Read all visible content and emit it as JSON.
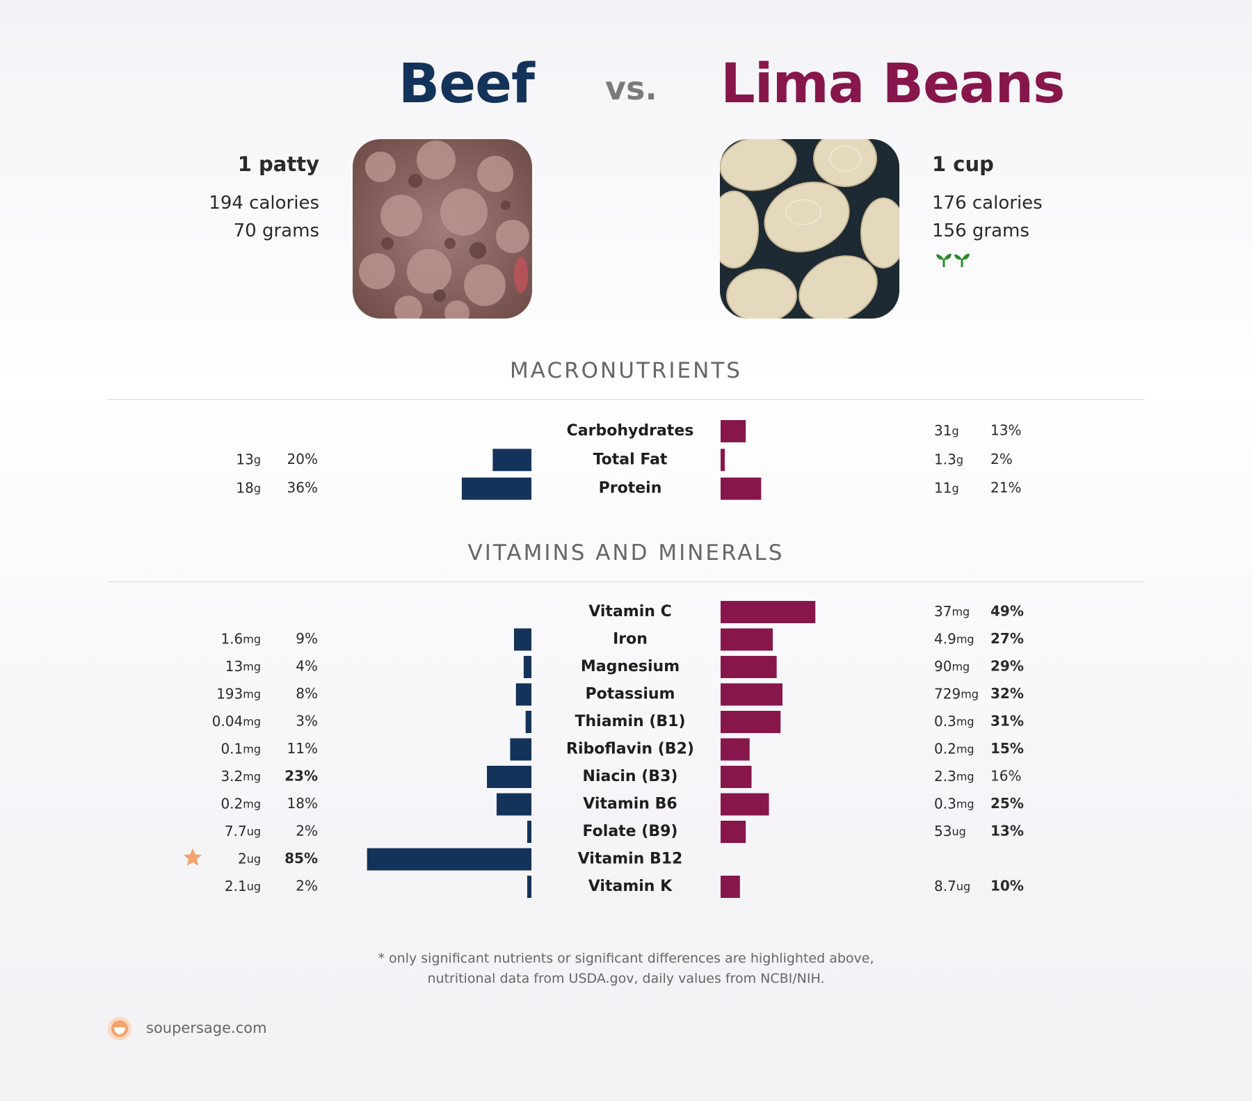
{
  "header": {
    "left_title": "Beef",
    "vs": "vs.",
    "right_title": "Lima Beans"
  },
  "foods": {
    "left": {
      "serving": "1 patty",
      "calories": "194 calories",
      "grams": "70 grams",
      "photo_icon": "ground-beef-photo"
    },
    "right": {
      "serving": "1 cup",
      "calories": "176 calories",
      "grams": "156 grams",
      "photo_icon": "lima-beans-photo",
      "badge_icon": "sprouts-icon"
    }
  },
  "colors": {
    "left": "#14335a",
    "right": "#87164b",
    "star": "#f5a46c"
  },
  "sections": {
    "macros": "MACRONUTRIENTS",
    "vitamins": "VITAMINS AND MINERALS"
  },
  "chart_data": [
    {
      "type": "bar",
      "title": "MACRONUTRIENTS",
      "categories": [
        "Carbohydrates",
        "Total Fat",
        "Protein"
      ],
      "series": [
        {
          "name": "Beef",
          "values": [
            null,
            20,
            36
          ],
          "amounts": [
            null,
            "13",
            "18"
          ],
          "units": [
            null,
            "g",
            "g"
          ],
          "labels": [
            null,
            "20%",
            "36%"
          ],
          "bold": [
            false,
            false,
            false
          ]
        },
        {
          "name": "Lima Beans",
          "values": [
            13,
            2,
            21
          ],
          "amounts": [
            "31",
            "1.3",
            "11"
          ],
          "units": [
            "g",
            "g",
            "g"
          ],
          "labels": [
            "13%",
            "2%",
            "21%"
          ],
          "bold": [
            false,
            false,
            false
          ]
        }
      ]
    },
    {
      "type": "bar",
      "title": "VITAMINS AND MINERALS",
      "categories": [
        "Vitamin C",
        "Iron",
        "Magnesium",
        "Potassium",
        "Thiamin (B1)",
        "Riboflavin (B2)",
        "Niacin (B3)",
        "Vitamin B6",
        "Folate (B9)",
        "Vitamin B12",
        "Vitamin K"
      ],
      "series": [
        {
          "name": "Beef",
          "values": [
            null,
            9,
            4,
            8,
            3,
            11,
            23,
            18,
            2,
            85,
            2
          ],
          "amounts": [
            null,
            "1.6",
            "13",
            "193",
            "0.04",
            "0.1",
            "3.2",
            "0.2",
            "7.7",
            "2",
            "2.1"
          ],
          "units": [
            null,
            "mg",
            "mg",
            "mg",
            "mg",
            "mg",
            "mg",
            "mg",
            "ug",
            "ug",
            "ug"
          ],
          "labels": [
            null,
            "9%",
            "4%",
            "8%",
            "3%",
            "11%",
            "23%",
            "18%",
            "2%",
            "85%",
            "2%"
          ],
          "bold": [
            false,
            false,
            false,
            false,
            false,
            false,
            true,
            false,
            false,
            true,
            false
          ],
          "starred": [
            false,
            false,
            false,
            false,
            false,
            false,
            false,
            false,
            false,
            true,
            false
          ]
        },
        {
          "name": "Lima Beans",
          "values": [
            49,
            27,
            29,
            32,
            31,
            15,
            16,
            25,
            13,
            null,
            10
          ],
          "amounts": [
            "37",
            "4.9",
            "90",
            "729",
            "0.3",
            "0.2",
            "2.3",
            "0.3",
            "53",
            null,
            "8.7"
          ],
          "units": [
            "mg",
            "mg",
            "mg",
            "mg",
            "mg",
            "mg",
            "mg",
            "mg",
            "ug",
            null,
            "ug"
          ],
          "labels": [
            "49%",
            "27%",
            "29%",
            "32%",
            "31%",
            "15%",
            "16%",
            "25%",
            "13%",
            null,
            "10%"
          ],
          "bold": [
            true,
            true,
            true,
            true,
            true,
            true,
            false,
            true,
            true,
            false,
            true
          ]
        }
      ]
    }
  ],
  "footnote": {
    "line1": "* only significant nutrients or significant differences are highlighted above,",
    "line2": "nutritional data from USDA.gov, daily values from NCBI/NIH."
  },
  "brand": {
    "name": "soupersage.com",
    "logo_icon": "soupersage-logo-icon"
  }
}
